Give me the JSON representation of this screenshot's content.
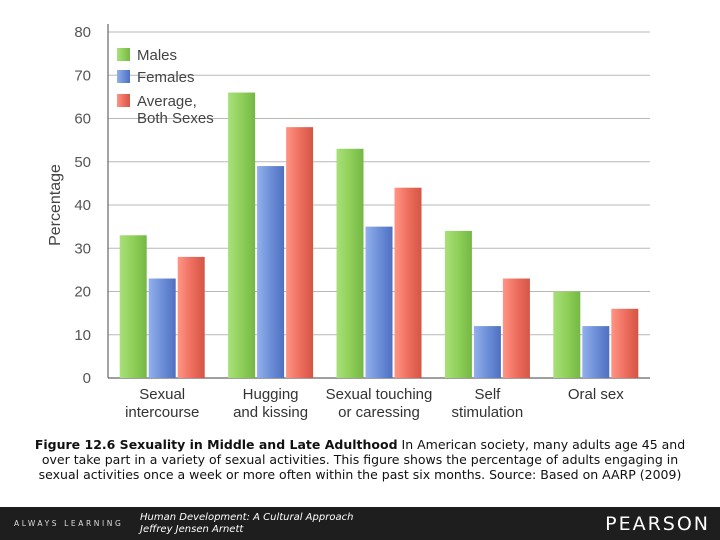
{
  "chart_data": {
    "type": "bar",
    "title": "",
    "xlabel": "",
    "ylabel": "Percentage",
    "ylim": [
      0,
      80
    ],
    "yticks": [
      0,
      10,
      20,
      30,
      40,
      50,
      60,
      70,
      80
    ],
    "grid": true,
    "legend_position": "top-left",
    "categories": [
      [
        "Sexual",
        "intercourse"
      ],
      [
        "Hugging",
        "and kissing"
      ],
      [
        "Sexual touching",
        "or caressing"
      ],
      [
        "Self",
        "stimulation"
      ],
      [
        "Oral sex"
      ]
    ],
    "series": [
      {
        "name": [
          "Males"
        ],
        "color": "#8fcf5a",
        "values": [
          33,
          66,
          53,
          34,
          20
        ]
      },
      {
        "name": [
          "Females"
        ],
        "color": "#6d8fd8",
        "values": [
          23,
          49,
          35,
          12,
          12
        ]
      },
      {
        "name": [
          "Average,",
          "Both Sexes"
        ],
        "color": "#ee6f5f",
        "values": [
          28,
          58,
          44,
          23,
          16
        ]
      }
    ]
  },
  "caption": {
    "figure_title": "Figure 12.6 Sexuality in Middle and Late Adulthood",
    "text": "In American society, many adults age 45 and over take part in a variety of sexual activities. This figure shows the percentage of adults engaging in sexual activities once a week or more often within the past six months. Source: Based on AARP (2009)"
  },
  "footer": {
    "always_learning": "ALWAYS LEARNING",
    "book_title": "Human Development: A Cultural Approach",
    "author": "Jeffrey Jensen Arnett",
    "publisher": "PEARSON"
  }
}
